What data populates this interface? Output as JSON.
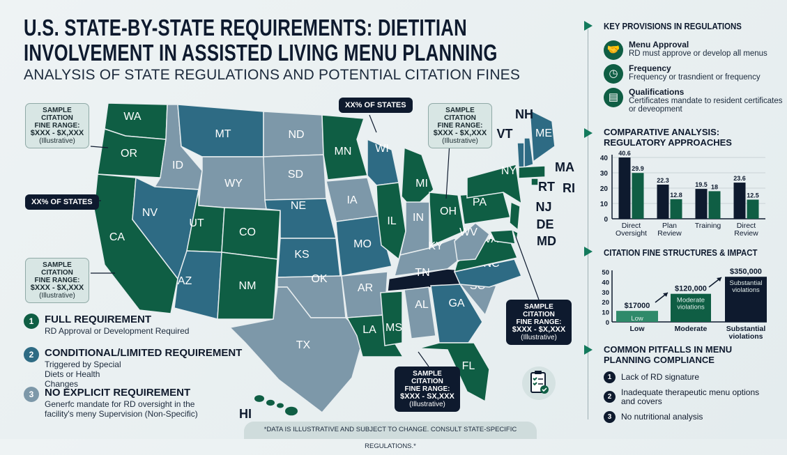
{
  "header": {
    "title": "U.S. STATE-BY-STATE REQUIREMENTS: DIETITIAN INVOLVEMENT IN ASSISTED LIVING MENU PLANNING",
    "subtitle": "ANALYSIS OF STATE REGULATIONS AND POTENTIAL CITATION FINES"
  },
  "colors": {
    "full": "#0f5e44",
    "conditional": "#2e6b84",
    "none": "#7d98a9",
    "highlight": "#0e1a2e",
    "accent": "#137a5c"
  },
  "map": {
    "states": [
      {
        "abbr": "WA",
        "category": "full"
      },
      {
        "abbr": "OR",
        "category": "full"
      },
      {
        "abbr": "CA",
        "category": "full"
      },
      {
        "abbr": "ID",
        "category": "none"
      },
      {
        "abbr": "NV",
        "category": "conditional"
      },
      {
        "abbr": "MT",
        "category": "conditional"
      },
      {
        "abbr": "WY",
        "category": "none"
      },
      {
        "abbr": "UT",
        "category": "full"
      },
      {
        "abbr": "CO",
        "category": "full"
      },
      {
        "abbr": "AZ",
        "category": "conditional"
      },
      {
        "abbr": "NM",
        "category": "full"
      },
      {
        "abbr": "ND",
        "category": "none"
      },
      {
        "abbr": "SD",
        "category": "none"
      },
      {
        "abbr": "NE",
        "category": "conditional"
      },
      {
        "abbr": "KS",
        "category": "conditional"
      },
      {
        "abbr": "OK",
        "category": "none"
      },
      {
        "abbr": "TX",
        "category": "none"
      },
      {
        "abbr": "MN",
        "category": "full"
      },
      {
        "abbr": "IA",
        "category": "none"
      },
      {
        "abbr": "MO",
        "category": "conditional"
      },
      {
        "abbr": "AR",
        "category": "none"
      },
      {
        "abbr": "LA",
        "category": "full"
      },
      {
        "abbr": "WI",
        "category": "conditional"
      },
      {
        "abbr": "IL",
        "category": "full"
      },
      {
        "abbr": "MI",
        "category": "full"
      },
      {
        "abbr": "IN",
        "category": "none"
      },
      {
        "abbr": "OH",
        "category": "full"
      },
      {
        "abbr": "KY",
        "category": "none"
      },
      {
        "abbr": "TN",
        "category": "highlight"
      },
      {
        "abbr": "MS",
        "category": "full"
      },
      {
        "abbr": "AL",
        "category": "none"
      },
      {
        "abbr": "GA",
        "category": "conditional"
      },
      {
        "abbr": "FL",
        "category": "full"
      },
      {
        "abbr": "SC",
        "category": "none"
      },
      {
        "abbr": "NC",
        "category": "conditional"
      },
      {
        "abbr": "VA",
        "category": "full"
      },
      {
        "abbr": "WV",
        "category": "none"
      },
      {
        "abbr": "PA",
        "category": "full"
      },
      {
        "abbr": "NY",
        "category": "full"
      },
      {
        "abbr": "VT",
        "category": "conditional"
      },
      {
        "abbr": "NH",
        "category": "conditional"
      },
      {
        "abbr": "ME",
        "category": "conditional"
      },
      {
        "abbr": "MA",
        "category": "full"
      },
      {
        "abbr": "NJ",
        "category": "full"
      },
      {
        "abbr": "DE",
        "category": "full"
      },
      {
        "abbr": "MD",
        "category": "full"
      },
      {
        "abbr": "RI",
        "category": "full"
      },
      {
        "abbr": "HI",
        "category": "full"
      }
    ],
    "outside_labels": {
      "VT": "VT",
      "NH": "NH",
      "MA": "MA",
      "RT": "RT",
      "RI": "RI",
      "NJ": "NJ",
      "DE": "DE",
      "MD": "MD"
    },
    "callouts": [
      {
        "l1": "SAMPLE CITATION",
        "l2": "FINE RANGE:",
        "l3": "$XXX - $X,XXX",
        "l4": "(Illustrative)"
      },
      {
        "l1": "SAMPLE CITATION",
        "l2": "FINE RANGE:",
        "l3": "$XXX - $X,XXX",
        "l4": "(Illustrative)"
      },
      {
        "l1": "SAMPLE CITATION",
        "l2": "FINE RANGE:",
        "l3": "$XXX - $X,XXX",
        "l4": "(Illustrative)"
      },
      {
        "l1": "SAMPLE CITATION",
        "l2": "FINE RANGE:",
        "l3": "$XXX - $X,XXX",
        "l4": "(Illustrative)"
      },
      {
        "l1": "SAMPLE CITATION",
        "l2": "FINE RANGE:",
        "l3": "$XXX - SX,XXX",
        "l4": "(Illustrative)"
      }
    ],
    "pills": [
      "XX% OF STATES",
      "XX% OF STATES"
    ]
  },
  "legend": [
    {
      "num": "1",
      "title": "FULL REQUIREMENT",
      "desc": "RD Approval or Development Required"
    },
    {
      "num": "2",
      "title": "CONDITIONAL/LIMITED REQUIREMENT",
      "desc": "Triggered by Special Diets or Health Changes"
    },
    {
      "num": "3",
      "title": "NO EXPLICIT REQUIREMENT",
      "desc": "Generfc mandate for RD oversight in the facility's meny Supervision (Non-Specific)"
    }
  ],
  "footer": "*DATA IS ILLUSTRATIVE AND SUBJECT TO CHANGE. CONSULT STATE-SPECIFIC REGULATIONS.*",
  "key_provisions": {
    "title": "KEY PROVISIONS IN REGULATIONS",
    "items": [
      {
        "icon": "handshake-icon",
        "title": "Menu Approval",
        "desc": "RD must approve or develop all menus"
      },
      {
        "icon": "clock-icon",
        "title": "Frequency",
        "desc": "Frequency or trasndient or frequency"
      },
      {
        "icon": "certificate-icon",
        "title": "Qualifications",
        "desc": "Certificates mandate to resident certificates or deveopment"
      }
    ]
  },
  "chart_data": [
    {
      "type": "bar",
      "title": "COMPARATIVE ANALYSIS: REGULATORY APPROACHES",
      "categories": [
        "Direct Oversight",
        "Plan Review",
        "Training",
        "Direct Review"
      ],
      "series": [
        {
          "values": [
            40.6,
            22.3,
            19.5,
            23.6
          ],
          "color": "#0e1a2e"
        },
        {
          "values": [
            29.9,
            12.8,
            18,
            12.5
          ],
          "color": "#0f5e44"
        }
      ],
      "ylim": [
        0,
        40
      ],
      "yticks": [
        "0",
        "10",
        "20",
        "30",
        "40"
      ],
      "grid": true
    },
    {
      "type": "bar",
      "title": "CITATION FINE STRUCTURES & IMPACT",
      "categories": [
        "Low",
        "Moderate",
        "Substantial violations"
      ],
      "values": [
        11,
        28,
        45
      ],
      "data_labels": [
        "$17000",
        "$120,000",
        "$350,000"
      ],
      "bar_labels": [
        "Low",
        "Moderate violations",
        "Substantial violations"
      ],
      "colors": [
        "#2f8a6a",
        "#0f5e44",
        "#0e1a2e"
      ],
      "ylim": [
        0,
        50
      ],
      "yticks": [
        "0",
        "10",
        "20",
        "30",
        "40",
        "50"
      ],
      "grid": false
    }
  ],
  "pitfalls": {
    "title": "COMMON PITFALLS IN MENU PLANNING COMPLIANCE",
    "items": [
      {
        "num": "1",
        "text": "Lack of RD signature"
      },
      {
        "num": "2",
        "text": "Inadequate therapeutic menu options and covers"
      },
      {
        "num": "3",
        "text": "No nutritional analysis"
      }
    ]
  }
}
